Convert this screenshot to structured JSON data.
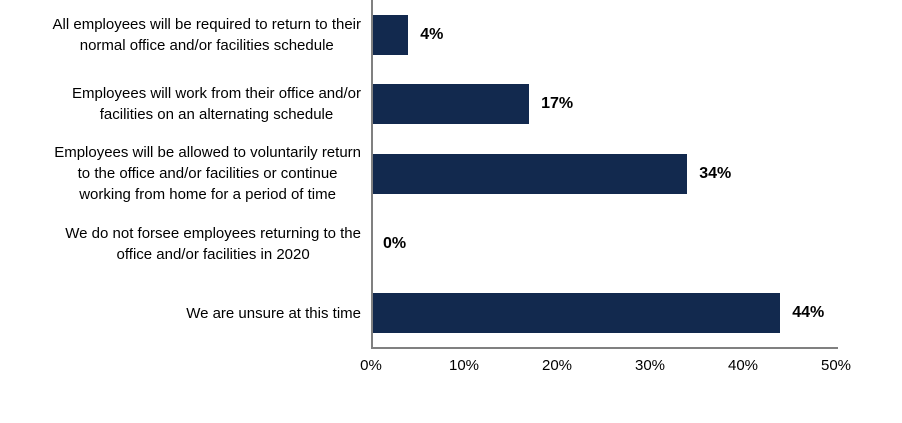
{
  "chart_data": {
    "type": "bar",
    "orientation": "horizontal",
    "title": "",
    "xlabel": "",
    "ylabel": "",
    "categories": [
      "All employees will be required to return to their\nnormal office and/or facilities schedule",
      "Employees will work from their office and/or\nfacilities on an alternating schedule",
      "Employees will be allowed to voluntarily return\nto the office and/or facilities or continue\nworking from home for a period of time",
      "We do not forsee employees returning to the\noffice and/or facilities in 2020",
      "We are unsure at this time"
    ],
    "values": [
      4,
      17,
      34,
      0,
      44
    ],
    "value_labels": [
      "4%",
      "17%",
      "34%",
      "0%",
      "44%"
    ],
    "xlim": [
      0,
      50
    ],
    "x_ticks": [
      "0%",
      "10%",
      "20%",
      "30%",
      "40%",
      "50%"
    ],
    "x_tick_values": [
      0,
      10,
      20,
      30,
      40,
      50
    ],
    "grid": false,
    "legend": false,
    "bar_color": "#12294E",
    "axis_color": "#808080",
    "label_color": "#000000"
  }
}
